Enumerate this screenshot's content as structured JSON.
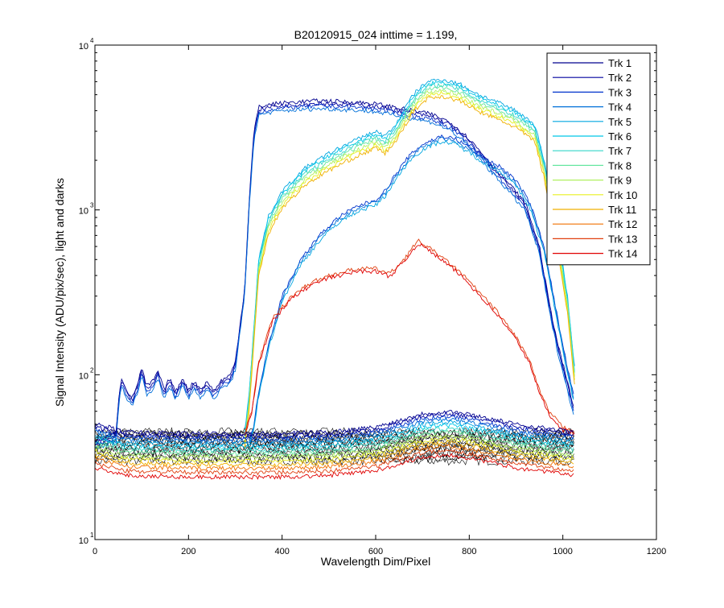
{
  "chart_data": {
    "type": "line",
    "title": "B20120915_024 inttime = 1.199,",
    "xlabel": "Wavelength Dim/Pixel",
    "ylabel": "Signal Intensity (ADU/pix/sec), light and darks",
    "xlim": [
      0,
      1200
    ],
    "ylim": [
      10,
      10000
    ],
    "yscale": "log",
    "grid": false,
    "legend_position": "top-right",
    "x_ticks": [
      "0",
      "200",
      "400",
      "600",
      "800",
      "1000",
      "1200"
    ],
    "y_ticks": [
      {
        "base": "10",
        "exp": "1"
      },
      {
        "base": "10",
        "exp": "2"
      },
      {
        "base": "10",
        "exp": "3"
      },
      {
        "base": "10",
        "exp": "4"
      }
    ],
    "series": [
      {
        "name": "Trk 1",
        "color": "#00008f"
      },
      {
        "name": "Trk 2",
        "color": "#00009f"
      },
      {
        "name": "Trk 3",
        "color": "#0033cc"
      },
      {
        "name": "Trk 4",
        "color": "#0070d9"
      },
      {
        "name": "Trk 5",
        "color": "#00a6e0"
      },
      {
        "name": "Trk 6",
        "color": "#00c8e8"
      },
      {
        "name": "Trk 7",
        "color": "#33d6c8"
      },
      {
        "name": "Trk 8",
        "color": "#66e6a0"
      },
      {
        "name": "Trk 9",
        "color": "#b0f060"
      },
      {
        "name": "Trk 10",
        "color": "#e8f020"
      },
      {
        "name": "Trk 11",
        "color": "#f0b000"
      },
      {
        "name": "Trk 12",
        "color": "#f07000"
      },
      {
        "name": "Trk 13",
        "color": "#e04010"
      },
      {
        "name": "Trk 14",
        "color": "#e00000"
      }
    ],
    "profiles": [
      {
        "name": "blue-step",
        "copies": [
          0,
          1,
          2,
          3
        ],
        "points": [
          [
            0,
            40
          ],
          [
            45,
            44
          ],
          [
            52,
            80
          ],
          [
            58,
            95
          ],
          [
            70,
            78
          ],
          [
            80,
            72
          ],
          [
            92,
            90
          ],
          [
            100,
            110
          ],
          [
            110,
            85
          ],
          [
            125,
            92
          ],
          [
            135,
            105
          ],
          [
            148,
            80
          ],
          [
            160,
            96
          ],
          [
            172,
            78
          ],
          [
            188,
            96
          ],
          [
            200,
            80
          ],
          [
            212,
            92
          ],
          [
            225,
            82
          ],
          [
            240,
            90
          ],
          [
            255,
            80
          ],
          [
            270,
            92
          ],
          [
            290,
            100
          ],
          [
            300,
            120
          ],
          [
            310,
            200
          ],
          [
            320,
            330
          ],
          [
            330,
            1200
          ],
          [
            340,
            3000
          ],
          [
            350,
            4200
          ],
          [
            380,
            4400
          ],
          [
            420,
            4500
          ],
          [
            480,
            4600
          ],
          [
            560,
            4500
          ],
          [
            600,
            4400
          ],
          [
            640,
            4200
          ],
          [
            680,
            4000
          ],
          [
            720,
            3800
          ],
          [
            760,
            3400
          ],
          [
            800,
            2700
          ],
          [
            840,
            2000
          ],
          [
            880,
            1500
          ],
          [
            920,
            1100
          ],
          [
            950,
            600
          ],
          [
            970,
            280
          ],
          [
            990,
            150
          ],
          [
            1010,
            90
          ],
          [
            1025,
            60
          ]
        ]
      },
      {
        "name": "blue-mid",
        "copies": [
          2,
          3,
          4
        ],
        "points": [
          [
            330,
            40
          ],
          [
            340,
            50
          ],
          [
            350,
            80
          ],
          [
            370,
            150
          ],
          [
            400,
            300
          ],
          [
            440,
            500
          ],
          [
            480,
            700
          ],
          [
            520,
            900
          ],
          [
            560,
            1050
          ],
          [
            600,
            1150
          ],
          [
            620,
            1300
          ],
          [
            640,
            1600
          ],
          [
            670,
            2100
          ],
          [
            700,
            2500
          ],
          [
            740,
            2800
          ],
          [
            770,
            2700
          ],
          [
            800,
            2400
          ],
          [
            840,
            2000
          ],
          [
            870,
            1800
          ],
          [
            900,
            1500
          ],
          [
            930,
            1100
          ],
          [
            960,
            600
          ],
          [
            980,
            300
          ],
          [
            1000,
            150
          ],
          [
            1025,
            70
          ]
        ]
      },
      {
        "name": "cyan-yellow-upper",
        "copies": [
          4,
          5,
          6,
          7,
          8,
          9,
          10
        ],
        "points": [
          [
            320,
            45
          ],
          [
            330,
            80
          ],
          [
            340,
            200
          ],
          [
            350,
            500
          ],
          [
            370,
            900
          ],
          [
            400,
            1300
          ],
          [
            450,
            1800
          ],
          [
            500,
            2200
          ],
          [
            550,
            2600
          ],
          [
            600,
            3000
          ],
          [
            620,
            2800
          ],
          [
            640,
            3200
          ],
          [
            660,
            4000
          ],
          [
            680,
            5000
          ],
          [
            710,
            6000
          ],
          [
            740,
            6200
          ],
          [
            780,
            5800
          ],
          [
            820,
            5000
          ],
          [
            860,
            4500
          ],
          [
            900,
            4000
          ],
          [
            940,
            3300
          ],
          [
            960,
            2000
          ],
          [
            990,
            700
          ],
          [
            1010,
            300
          ],
          [
            1025,
            110
          ]
        ]
      },
      {
        "name": "red-hump",
        "copies": [
          12,
          13
        ],
        "points": [
          [
            320,
            45
          ],
          [
            335,
            60
          ],
          [
            350,
            120
          ],
          [
            380,
            220
          ],
          [
            420,
            300
          ],
          [
            460,
            360
          ],
          [
            500,
            400
          ],
          [
            560,
            440
          ],
          [
            600,
            440
          ],
          [
            630,
            410
          ],
          [
            660,
            500
          ],
          [
            690,
            650
          ],
          [
            710,
            600
          ],
          [
            740,
            520
          ],
          [
            780,
            420
          ],
          [
            820,
            320
          ],
          [
            860,
            240
          ],
          [
            900,
            170
          ],
          [
            930,
            120
          ],
          [
            950,
            80
          ],
          [
            970,
            60
          ],
          [
            1000,
            48
          ],
          [
            1025,
            46
          ]
        ]
      },
      {
        "name": "flat-low",
        "copies": [
          0,
          1,
          2,
          3,
          4,
          5,
          6,
          7,
          8,
          9,
          10,
          11,
          12,
          13
        ],
        "points": [
          [
            0,
            50
          ],
          [
            30,
            48
          ],
          [
            60,
            45
          ],
          [
            200,
            44
          ],
          [
            400,
            44
          ],
          [
            500,
            45
          ],
          [
            600,
            48
          ],
          [
            700,
            58
          ],
          [
            760,
            60
          ],
          [
            820,
            56
          ],
          [
            900,
            50
          ],
          [
            950,
            48
          ],
          [
            1000,
            46
          ],
          [
            1025,
            45
          ]
        ]
      }
    ],
    "darks": {
      "color": "#000000",
      "x_range": [
        0,
        1025
      ],
      "y_range": [
        30,
        45
      ]
    }
  }
}
